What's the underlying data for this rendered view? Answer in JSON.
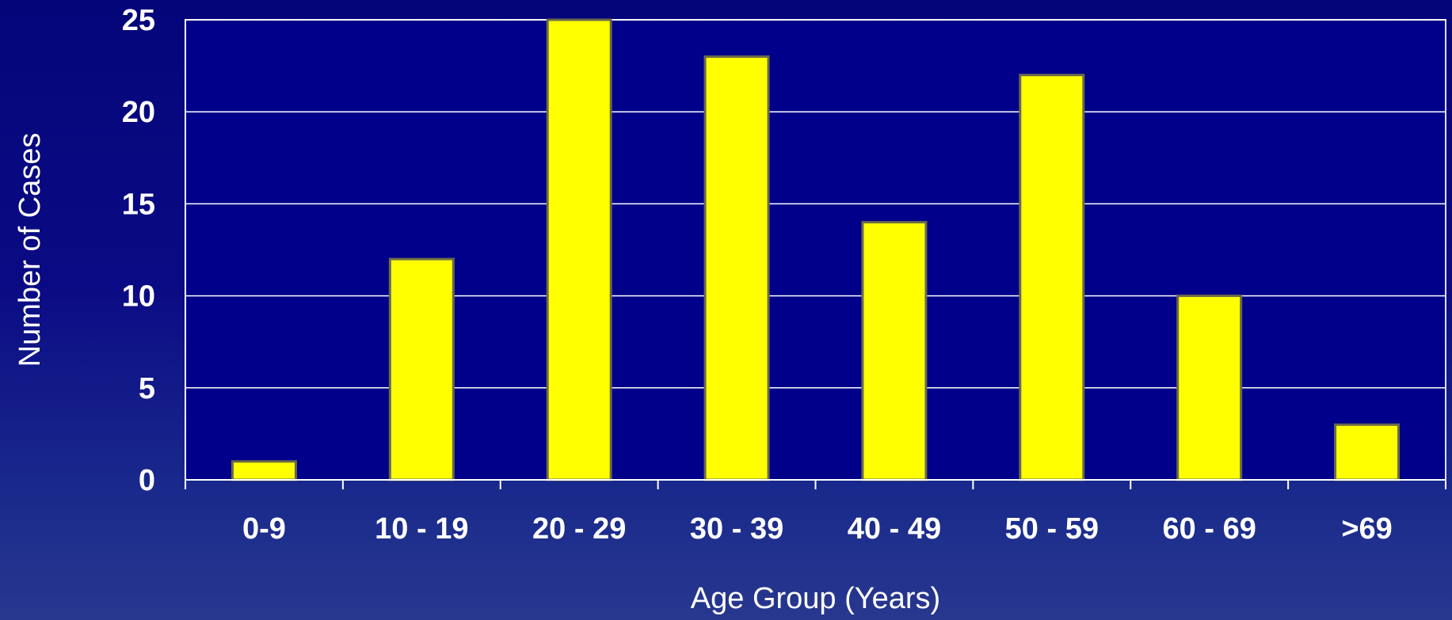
{
  "chart_data": {
    "type": "bar",
    "categories": [
      "0-9",
      "10 - 19",
      "20 - 29",
      "30 - 39",
      "40 - 49",
      "50 - 59",
      "60 - 69",
      ">69"
    ],
    "values": [
      1,
      12,
      25,
      23,
      14,
      22,
      10,
      3
    ],
    "xlabel": "Age Group (Years)",
    "ylabel": "Number of Cases",
    "ylim": [
      0,
      25
    ],
    "yticks": [
      "0",
      "5",
      "10",
      "15",
      "20",
      "25"
    ],
    "grid": true,
    "legend": "none",
    "colors": {
      "bar": "#ffff00",
      "bar_border": "#6a6a4a",
      "plot_background": "#00008a",
      "grid": "#ffffff",
      "text": "#ffffff"
    }
  }
}
